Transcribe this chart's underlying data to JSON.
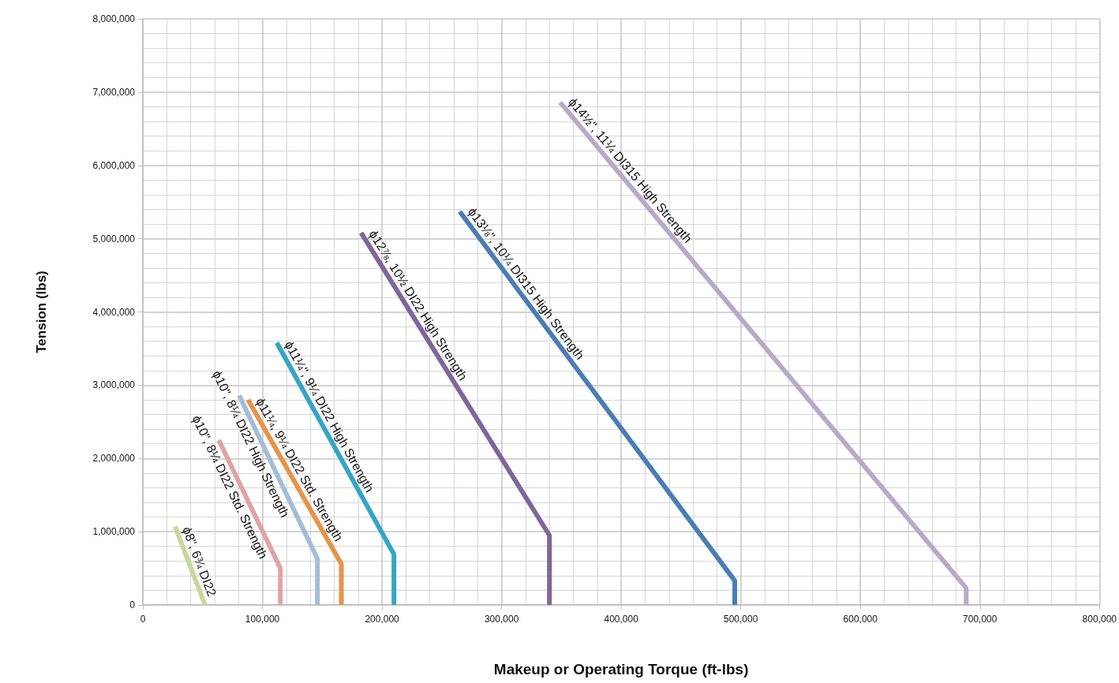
{
  "chart_data": {
    "type": "line",
    "xlabel": "Makeup or Operating Torque (ft-lbs)",
    "ylabel": "Tension (lbs)",
    "xlim": [
      0,
      800000
    ],
    "ylim": [
      0,
      8000000
    ],
    "xticks": [
      0,
      {
        "value": 100000,
        "label": "100,000"
      },
      {
        "value": 200000,
        "label": "200,000"
      },
      {
        "value": 300000,
        "label": "300,000"
      },
      {
        "value": 400000,
        "label": "400,000"
      },
      {
        "value": 500000,
        "label": "500,000"
      },
      {
        "value": 600000,
        "label": "600,000"
      },
      {
        "value": 700000,
        "label": "700,000"
      },
      {
        "value": 800000,
        "label": "800,000"
      }
    ],
    "yticks": [
      0,
      {
        "value": 1000000,
        "label": "1,000,000"
      },
      {
        "value": 2000000,
        "label": "2,000,000"
      },
      {
        "value": 3000000,
        "label": "3,000,000"
      },
      {
        "value": 4000000,
        "label": "4,000,000"
      },
      {
        "value": 5000000,
        "label": "5,000,000"
      },
      {
        "value": 6000000,
        "label": "6,000,000"
      },
      {
        "value": 7000000,
        "label": "7,000,000"
      },
      {
        "value": 8000000,
        "label": "8,000,000"
      }
    ],
    "grid": true,
    "legend": false,
    "marker": "none",
    "line_style": "solid",
    "series": [
      {
        "name": "ϕ8\", 6¾ DI22",
        "color": "#c5d89e",
        "x": [
          27000,
          52000
        ],
        "values": [
          1070000,
          0
        ]
      },
      {
        "name": "ϕ10\", 8¼ DI22 Std. Strength",
        "color": "#e0a3a3",
        "x": [
          63500,
          115000,
          115000
        ],
        "values": [
          2250000,
          500000,
          0
        ]
      },
      {
        "name": "ϕ10\", 8¼ DI22 High Strength",
        "color": "#a3bcd9",
        "x": [
          80500,
          146000,
          146000
        ],
        "values": [
          2860000,
          630000,
          0
        ]
      },
      {
        "name": "ϕ11¼, 9¼ DI22 Std. Strength",
        "color": "#e8934a",
        "x": [
          88000,
          166000,
          166000
        ],
        "values": [
          2800000,
          560000,
          0
        ]
      },
      {
        "name": "ϕ11¼\", 9¼ DI22 High Strength",
        "color": "#33a6c4",
        "x": [
          112000,
          210000,
          210000
        ],
        "values": [
          3580000,
          690000,
          0
        ]
      },
      {
        "name": "ϕ12⅞, 10½ DI22 High Strength",
        "color": "#7f659c",
        "x": [
          182500,
          340000,
          340000
        ],
        "values": [
          5080000,
          950000,
          0
        ]
      },
      {
        "name": "ϕ13⅛\", 10¼ DI315 High Strength",
        "color": "#4a7db5",
        "x": [
          265000,
          495000,
          495000
        ],
        "values": [
          5370000,
          330000,
          0
        ]
      },
      {
        "name": "ϕ14½\", 11¼ DI315 High Strength",
        "color": "#b8a9c9",
        "x": [
          349000,
          688500,
          688500
        ],
        "values": [
          6860000,
          230000,
          0
        ]
      }
    ]
  }
}
